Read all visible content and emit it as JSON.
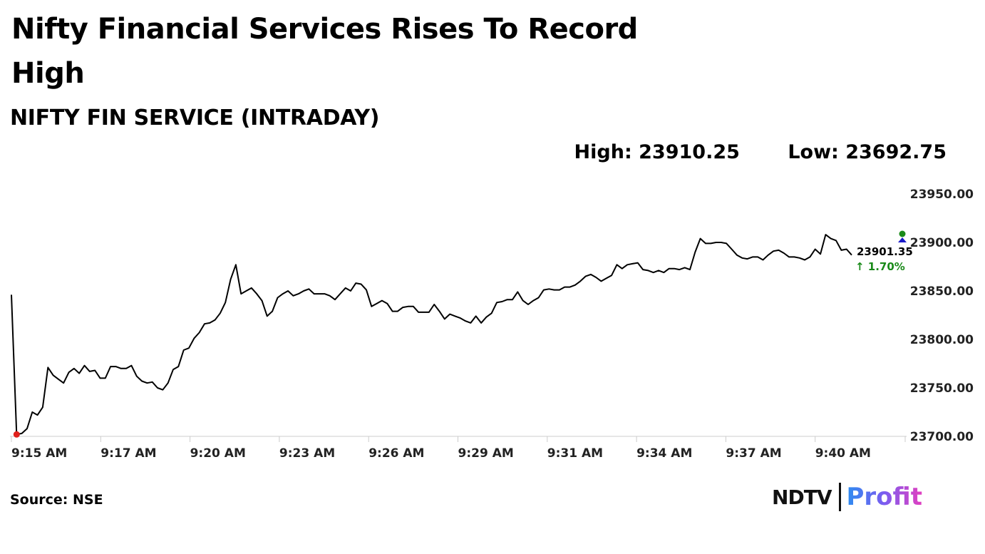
{
  "headline": "Nifty Financial Services Rises To Record High",
  "source": "Source: NSE",
  "stats": {
    "high": "High: 23910.25",
    "low": "Low: 23692.75"
  },
  "brand": {
    "ndtv": "NDTV",
    "profit": "Profit"
  },
  "colors": {
    "line": "#000000",
    "start_dot": "#e0201c",
    "high_dot": "#1a8a1a",
    "low_marker": "#1a1ac8",
    "change": "#1a8a1a",
    "axis": "#cccccc"
  },
  "chart_data": {
    "type": "line",
    "title": "NIFTY FIN SERVICE (INTRADAY)",
    "xlabel": "",
    "ylabel": "",
    "ylim": [
      23700,
      23950
    ],
    "yticks": [
      "23950.00",
      "23900.00",
      "23850.00",
      "23800.00",
      "23750.00",
      "23700.00"
    ],
    "xticks": [
      "9:15 AM",
      "9:17 AM",
      "9:20 AM",
      "9:23 AM",
      "9:26 AM",
      "9:29 AM",
      "9:31 AM",
      "9:34 AM",
      "9:37 AM",
      "9:40 AM"
    ],
    "last_value": "23901.35",
    "change": "↑ 1.70%",
    "grid": false,
    "series": [
      {
        "values": [
          23846,
          23702,
          23703,
          23708,
          23725,
          23722,
          23730,
          23771,
          23763,
          23759,
          23755,
          23766,
          23770,
          23765,
          23773,
          23767,
          23768,
          23760,
          23760,
          23772,
          23772,
          23770,
          23770,
          23773,
          23762,
          23757,
          23755,
          23756,
          23750,
          23748,
          23755,
          23769,
          23772,
          23789,
          23791,
          23801,
          23807,
          23816,
          23817,
          23820,
          23827,
          23838,
          23862,
          23877,
          23847,
          23850,
          23853,
          23847,
          23840,
          23824,
          23829,
          23843,
          23847,
          23850,
          23845,
          23847,
          23850,
          23852,
          23847,
          23847,
          23847,
          23845,
          23841,
          23847,
          23853,
          23850,
          23858,
          23857,
          23851,
          23834,
          23837,
          23840,
          23837,
          23829,
          23829,
          23833,
          23834,
          23834,
          23828,
          23828,
          23828,
          23836,
          23829,
          23821,
          23826,
          23824,
          23822,
          23819,
          23817,
          23824,
          23817,
          23823,
          23827,
          23838,
          23839,
          23841,
          23841,
          23849,
          23840,
          23836,
          23840,
          23843,
          23851,
          23852,
          23851,
          23851,
          23854,
          23854,
          23856,
          23860,
          23865,
          23867,
          23864,
          23860,
          23863,
          23866,
          23877,
          23873,
          23877,
          23878,
          23879,
          23872,
          23871,
          23869,
          23871,
          23869,
          23873,
          23873,
          23872,
          23874,
          23872,
          23890,
          23904,
          23899,
          23899,
          23900,
          23900,
          23899,
          23893,
          23887,
          23884,
          23883,
          23885,
          23885,
          23882,
          23887,
          23891,
          23892,
          23889,
          23885,
          23885,
          23884,
          23882,
          23885,
          23893,
          23888,
          23908,
          23904,
          23902,
          23892,
          23893,
          23887
        ]
      }
    ]
  }
}
